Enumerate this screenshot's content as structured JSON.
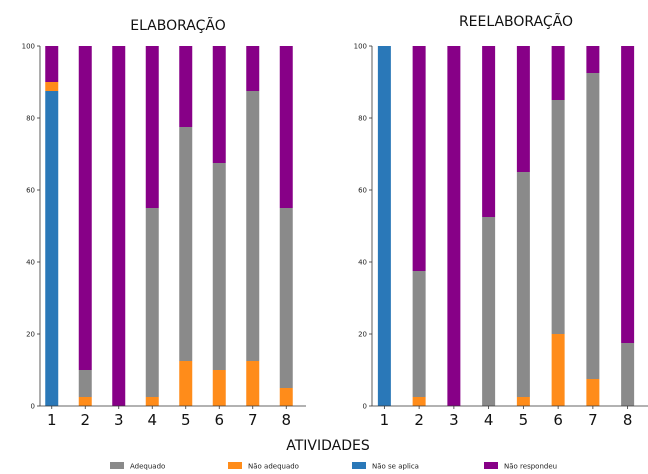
{
  "xlabel": "ATIVIDADES",
  "colors": {
    "Adequado": "#8a8a8a",
    "Não adequado": "#ff8c1a",
    "Não se aplica": "#2a78b8",
    "Não respondeu": "#870087"
  },
  "legend": [
    "Adequado",
    "Não adequado",
    "Não se aplica",
    "Não respondeu"
  ],
  "chart_data": [
    {
      "type": "bar",
      "stacked": true,
      "title": "ELABORAÇÃO",
      "categories": [
        "1",
        "2",
        "3",
        "4",
        "5",
        "6",
        "7",
        "8"
      ],
      "ylim": [
        0,
        100
      ],
      "yticks": [
        0,
        20,
        40,
        60,
        80,
        100
      ],
      "series": [
        {
          "name": "Não se aplica",
          "values": [
            87.5,
            0,
            0,
            0,
            0,
            0,
            0,
            0
          ]
        },
        {
          "name": "Não adequado",
          "values": [
            2.5,
            2.5,
            0,
            2.5,
            12.5,
            10,
            12.5,
            5
          ]
        },
        {
          "name": "Adequado",
          "values": [
            0,
            7.5,
            0,
            52.5,
            65,
            57.5,
            75,
            50
          ]
        },
        {
          "name": "Não respondeu",
          "values": [
            10,
            90,
            100,
            45,
            22.5,
            32.5,
            12.5,
            45
          ]
        }
      ]
    },
    {
      "type": "bar",
      "stacked": true,
      "title": "REELABORAÇÃO",
      "categories": [
        "1",
        "2",
        "3",
        "4",
        "5",
        "6",
        "7",
        "8"
      ],
      "ylim": [
        0,
        100
      ],
      "yticks": [
        0,
        20,
        40,
        60,
        80,
        100
      ],
      "series": [
        {
          "name": "Não se aplica",
          "values": [
            100,
            0,
            0,
            0,
            0,
            0,
            0,
            0
          ]
        },
        {
          "name": "Não adequado",
          "values": [
            0,
            2.5,
            0,
            0,
            2.5,
            20,
            7.5,
            0
          ]
        },
        {
          "name": "Adequado",
          "values": [
            0,
            35,
            0,
            52.5,
            62.5,
            65,
            85,
            17.5
          ]
        },
        {
          "name": "Não respondeu",
          "values": [
            0,
            62.5,
            100,
            47.5,
            35,
            15,
            7.5,
            82.5
          ]
        }
      ]
    }
  ]
}
